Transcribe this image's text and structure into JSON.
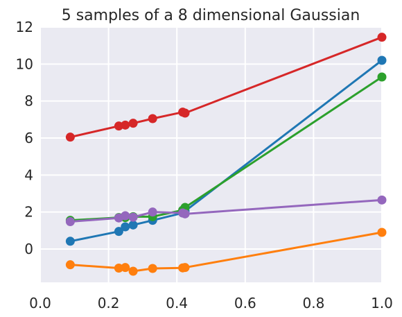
{
  "chart_data": {
    "type": "line",
    "title": "5 samples of a 8 dimensional Gaussian",
    "xlabel": "",
    "ylabel": "",
    "xlim": [
      0.0,
      1.0
    ],
    "ylim": [
      -1.8,
      12.0
    ],
    "x_ticks": [
      0.0,
      0.2,
      0.4,
      0.6,
      0.8,
      1.0
    ],
    "x_tick_labels": [
      "0.0",
      "0.2",
      "0.4",
      "0.6",
      "0.8",
      "1.0"
    ],
    "y_ticks": [
      0,
      2,
      4,
      6,
      8,
      10,
      12
    ],
    "y_tick_labels": [
      "0",
      "2",
      "4",
      "6",
      "8",
      "10",
      "12"
    ],
    "grid": true,
    "background": "#eaeaf2",
    "x": [
      0.088,
      0.23,
      0.249,
      0.272,
      0.329,
      0.417,
      0.424,
      1.0
    ],
    "series": [
      {
        "color": "#1f77b4",
        "values": [
          0.42,
          0.95,
          1.2,
          1.3,
          1.55,
          1.95,
          2.05,
          10.2
        ]
      },
      {
        "color": "#ff7f0e",
        "values": [
          -0.85,
          -1.03,
          -1.0,
          -1.2,
          -1.05,
          -1.02,
          -1.0,
          0.9
        ]
      },
      {
        "color": "#2ca02c",
        "values": [
          1.55,
          1.7,
          1.7,
          1.75,
          1.75,
          2.1,
          2.25,
          9.3
        ]
      },
      {
        "color": "#d62728",
        "values": [
          6.05,
          6.65,
          6.7,
          6.8,
          7.05,
          7.4,
          7.35,
          11.45
        ]
      },
      {
        "color": "#9467bd",
        "values": [
          1.48,
          1.68,
          1.8,
          1.72,
          2.0,
          1.95,
          1.9,
          2.65
        ]
      }
    ]
  }
}
